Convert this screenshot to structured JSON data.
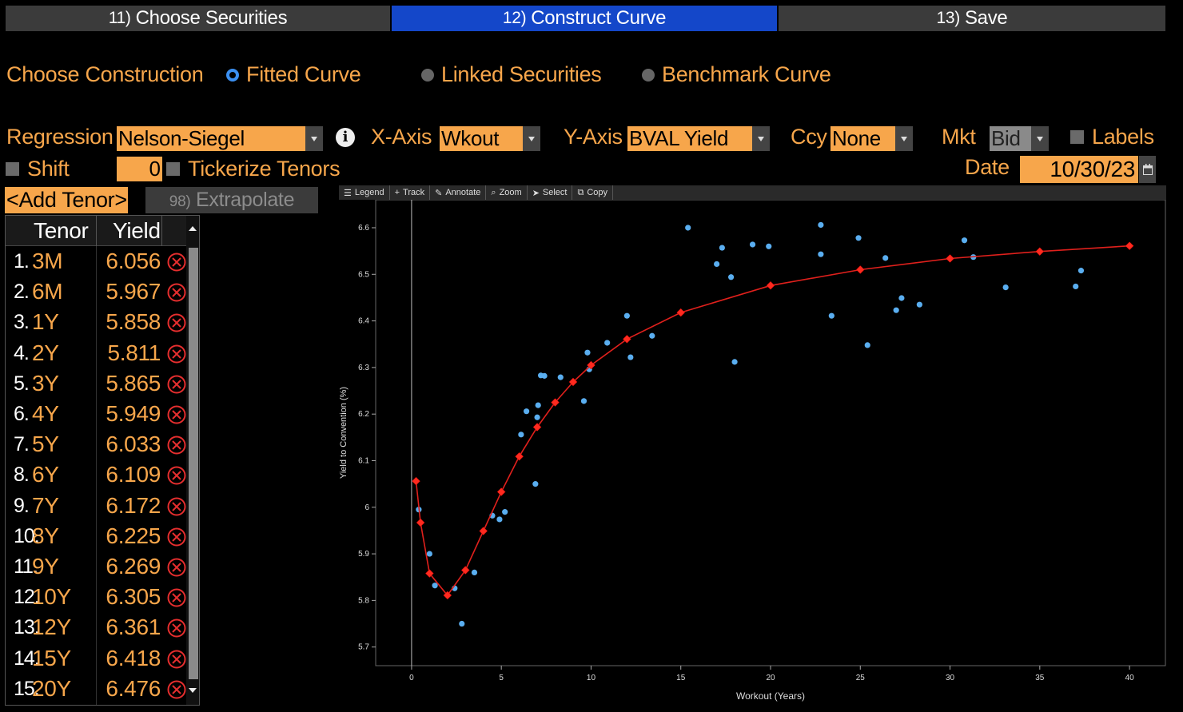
{
  "tabs": [
    {
      "num": "11)",
      "label": "Choose Securities"
    },
    {
      "num": "12)",
      "label": "Construct Curve"
    },
    {
      "num": "13)",
      "label": "Save"
    }
  ],
  "construction": {
    "label": "Choose Construction",
    "options": [
      {
        "label": "Fitted Curve",
        "selected": true
      },
      {
        "label": "Linked Securities",
        "selected": false
      },
      {
        "label": "Benchmark Curve",
        "selected": false
      }
    ]
  },
  "controls": {
    "regression_label": "Regression",
    "regression_value": "Nelson-Siegel",
    "xaxis_label": "X-Axis",
    "xaxis_value": "Wkout",
    "yaxis_label": "Y-Axis",
    "yaxis_value": "BVAL Yield",
    "ccy_label": "Ccy",
    "ccy_value": "None",
    "mkt_label": "Mkt",
    "mkt_value": "Bid",
    "labels_label": "Labels",
    "shift_label": "Shift",
    "shift_value": "0",
    "tickerize_label": "Tickerize Tenors",
    "date_label": "Date",
    "date_value": "10/30/23",
    "add_tenor_label": "<Add Tenor>",
    "extrapolate_num": "98)",
    "extrapolate_label": "Extrapolate"
  },
  "table": {
    "headers": [
      "Tenor",
      "Yield"
    ],
    "rows": [
      {
        "idx": "1.",
        "tenor": "3M",
        "yield": "6.056"
      },
      {
        "idx": "2.",
        "tenor": "6M",
        "yield": "5.967"
      },
      {
        "idx": "3.",
        "tenor": "1Y",
        "yield": "5.858"
      },
      {
        "idx": "4.",
        "tenor": "2Y",
        "yield": "5.811"
      },
      {
        "idx": "5.",
        "tenor": "3Y",
        "yield": "5.865"
      },
      {
        "idx": "6.",
        "tenor": "4Y",
        "yield": "5.949"
      },
      {
        "idx": "7.",
        "tenor": "5Y",
        "yield": "6.033"
      },
      {
        "idx": "8.",
        "tenor": "6Y",
        "yield": "6.109"
      },
      {
        "idx": "9.",
        "tenor": "7Y",
        "yield": "6.172"
      },
      {
        "idx": "10.",
        "tenor": "8Y",
        "yield": "6.225"
      },
      {
        "idx": "11.",
        "tenor": "9Y",
        "yield": "6.269"
      },
      {
        "idx": "12.",
        "tenor": "10Y",
        "yield": "6.305"
      },
      {
        "idx": "13.",
        "tenor": "12Y",
        "yield": "6.361"
      },
      {
        "idx": "14.",
        "tenor": "15Y",
        "yield": "6.418"
      },
      {
        "idx": "15.",
        "tenor": "20Y",
        "yield": "6.476"
      }
    ]
  },
  "toolbar": {
    "legend": "Legend",
    "track": "Track",
    "annotate": "Annotate",
    "zoom": "Zoom",
    "select": "Select",
    "copy": "Copy"
  },
  "colors": {
    "accent": "#f7a64b",
    "tab_active": "#1447c9",
    "curve": "#e0201c",
    "points": "#5aaef0"
  },
  "chart_data": {
    "type": "scatter",
    "xlabel": "Workout (Years)",
    "ylabel": "Yield to Convention (%)",
    "xlim": [
      -2,
      42
    ],
    "ylim": [
      5.66,
      6.66
    ],
    "xticks": [
      0,
      5,
      10,
      15,
      20,
      25,
      30,
      35,
      40
    ],
    "yticks": [
      5.7,
      5.8,
      5.9,
      6.0,
      6.1,
      6.2,
      6.3,
      6.4,
      6.5,
      6.6
    ],
    "ytick_labels": [
      "5.7",
      "5.8",
      "5.9",
      "6",
      "6.1",
      "6.2",
      "6.3",
      "6.4",
      "6.5",
      "6.6"
    ],
    "grid": false,
    "series": [
      {
        "type": "line",
        "points": [
          [
            0.25,
            6.056
          ],
          [
            0.5,
            5.967
          ],
          [
            1,
            5.858
          ],
          [
            2,
            5.811
          ],
          [
            3,
            5.865
          ],
          [
            4,
            5.949
          ],
          [
            5,
            6.033
          ],
          [
            6,
            6.109
          ],
          [
            7,
            6.172
          ],
          [
            8,
            6.225
          ],
          [
            9,
            6.269
          ],
          [
            10,
            6.305
          ],
          [
            12,
            6.361
          ],
          [
            15,
            6.418
          ],
          [
            20,
            6.476
          ],
          [
            25,
            6.51
          ],
          [
            30,
            6.534
          ],
          [
            35,
            6.549
          ],
          [
            40,
            6.561
          ]
        ]
      },
      {
        "type": "scatter",
        "points": [
          [
            0.4,
            5.995
          ],
          [
            1.0,
            5.9
          ],
          [
            1.3,
            5.832
          ],
          [
            2.4,
            5.826
          ],
          [
            2.8,
            5.75
          ],
          [
            3.5,
            5.86
          ],
          [
            4.5,
            5.982
          ],
          [
            4.9,
            5.974
          ],
          [
            5.2,
            5.99
          ],
          [
            6.1,
            6.156
          ],
          [
            6.4,
            6.206
          ],
          [
            6.9,
            6.05
          ],
          [
            7.0,
            6.193
          ],
          [
            7.05,
            6.219
          ],
          [
            7.2,
            6.283
          ],
          [
            7.4,
            6.282
          ],
          [
            8.3,
            6.279
          ],
          [
            9.6,
            6.228
          ],
          [
            9.8,
            6.332
          ],
          [
            9.9,
            6.296
          ],
          [
            10.9,
            6.353
          ],
          [
            12.0,
            6.411
          ],
          [
            12.2,
            6.322
          ],
          [
            13.4,
            6.368
          ],
          [
            15.4,
            6.6
          ],
          [
            17.0,
            6.522
          ],
          [
            17.3,
            6.557
          ],
          [
            17.8,
            6.494
          ],
          [
            18.0,
            6.312
          ],
          [
            19.0,
            6.564
          ],
          [
            19.9,
            6.56
          ],
          [
            22.8,
            6.606
          ],
          [
            22.8,
            6.543
          ],
          [
            23.4,
            6.411
          ],
          [
            24.9,
            6.578
          ],
          [
            25.4,
            6.348
          ],
          [
            26.4,
            6.535
          ],
          [
            27.0,
            6.423
          ],
          [
            27.3,
            6.449
          ],
          [
            28.3,
            6.435
          ],
          [
            30.8,
            6.573
          ],
          [
            31.3,
            6.537
          ],
          [
            33.1,
            6.472
          ],
          [
            37.0,
            6.474
          ],
          [
            37.3,
            6.508
          ]
        ]
      }
    ]
  }
}
